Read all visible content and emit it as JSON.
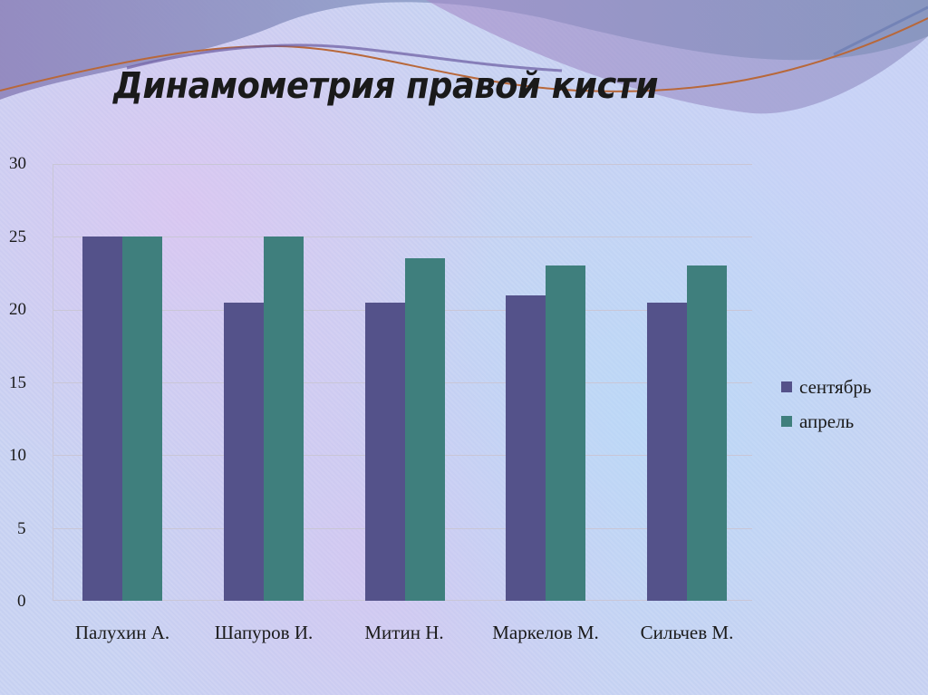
{
  "slide": {
    "title": "Динамометрия правой кисти"
  },
  "colors": {
    "september": "#54528a",
    "april": "#3f7f7d",
    "grid": "#c9c6d6"
  },
  "chart_data": {
    "type": "bar",
    "title": "Динамометрия правой кисти",
    "xlabel": "",
    "ylabel": "",
    "ylim": [
      0,
      30
    ],
    "yticks": [
      0,
      5,
      10,
      15,
      20,
      25,
      30
    ],
    "grid": true,
    "legend_position": "right",
    "categories": [
      "Палухин А.",
      "Шапуров И.",
      "Митин Н.",
      "Маркелов М.",
      "Сильчев М."
    ],
    "series": [
      {
        "name": "сентябрь",
        "color": "#54528a",
        "values": [
          25,
          20.5,
          20.5,
          21,
          20.5
        ]
      },
      {
        "name": "апрель",
        "color": "#3f7f7d",
        "values": [
          25,
          25,
          23.5,
          23,
          23
        ]
      }
    ]
  },
  "legend": {
    "items": [
      {
        "label": "сентябрь"
      },
      {
        "label": "апрель"
      }
    ]
  },
  "axis": {
    "y_labels": [
      "30",
      "25",
      "20",
      "15",
      "10",
      "5",
      "0"
    ]
  }
}
